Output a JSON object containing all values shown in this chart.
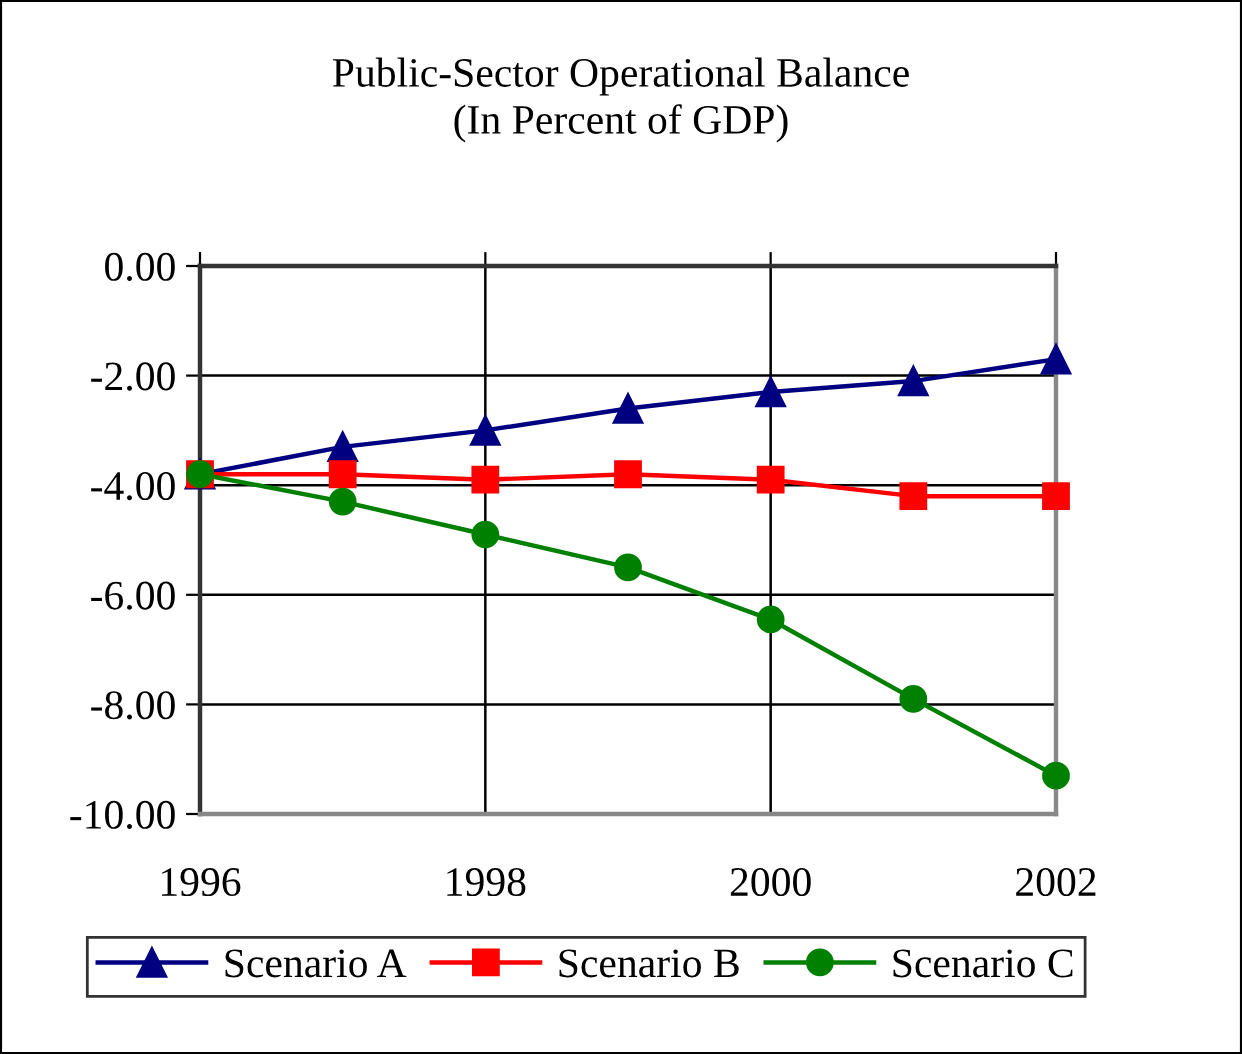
{
  "chart_data": {
    "type": "line",
    "title": "Public-Sector Operational Balance\n(In Percent of GDP)",
    "x": [
      1996,
      1997,
      1998,
      1999,
      2000,
      2001,
      2002
    ],
    "series": [
      {
        "name": "Scenario A",
        "color": "#000080",
        "marker": "triangle",
        "values": [
          -3.8,
          -3.3,
          -3.0,
          -2.6,
          -2.3,
          -2.1,
          -1.7
        ]
      },
      {
        "name": "Scenario B",
        "color": "#ff0000",
        "marker": "square",
        "values": [
          -3.8,
          -3.8,
          -3.9,
          -3.8,
          -3.9,
          -4.2,
          -4.2
        ]
      },
      {
        "name": "Scenario C",
        "color": "#008000",
        "marker": "circle",
        "values": [
          -3.8,
          -4.3,
          -4.9,
          -5.5,
          -6.45,
          -7.9,
          -9.3
        ]
      }
    ],
    "xlim": [
      1996,
      2002
    ],
    "xticks": [
      1996,
      1998,
      2000,
      2002
    ],
    "ylim": [
      -10,
      0
    ],
    "yticks": [
      {
        "value": 0,
        "label": "0.00"
      },
      {
        "value": -2,
        "label": "-2.00"
      },
      {
        "value": -4,
        "label": "-4.00"
      },
      {
        "value": -6,
        "label": "-6.00"
      },
      {
        "value": -8,
        "label": "-8.00"
      },
      {
        "value": -10,
        "label": "-10.00"
      }
    ],
    "grid": true,
    "legend": "bottom",
    "line_style": "solid"
  }
}
